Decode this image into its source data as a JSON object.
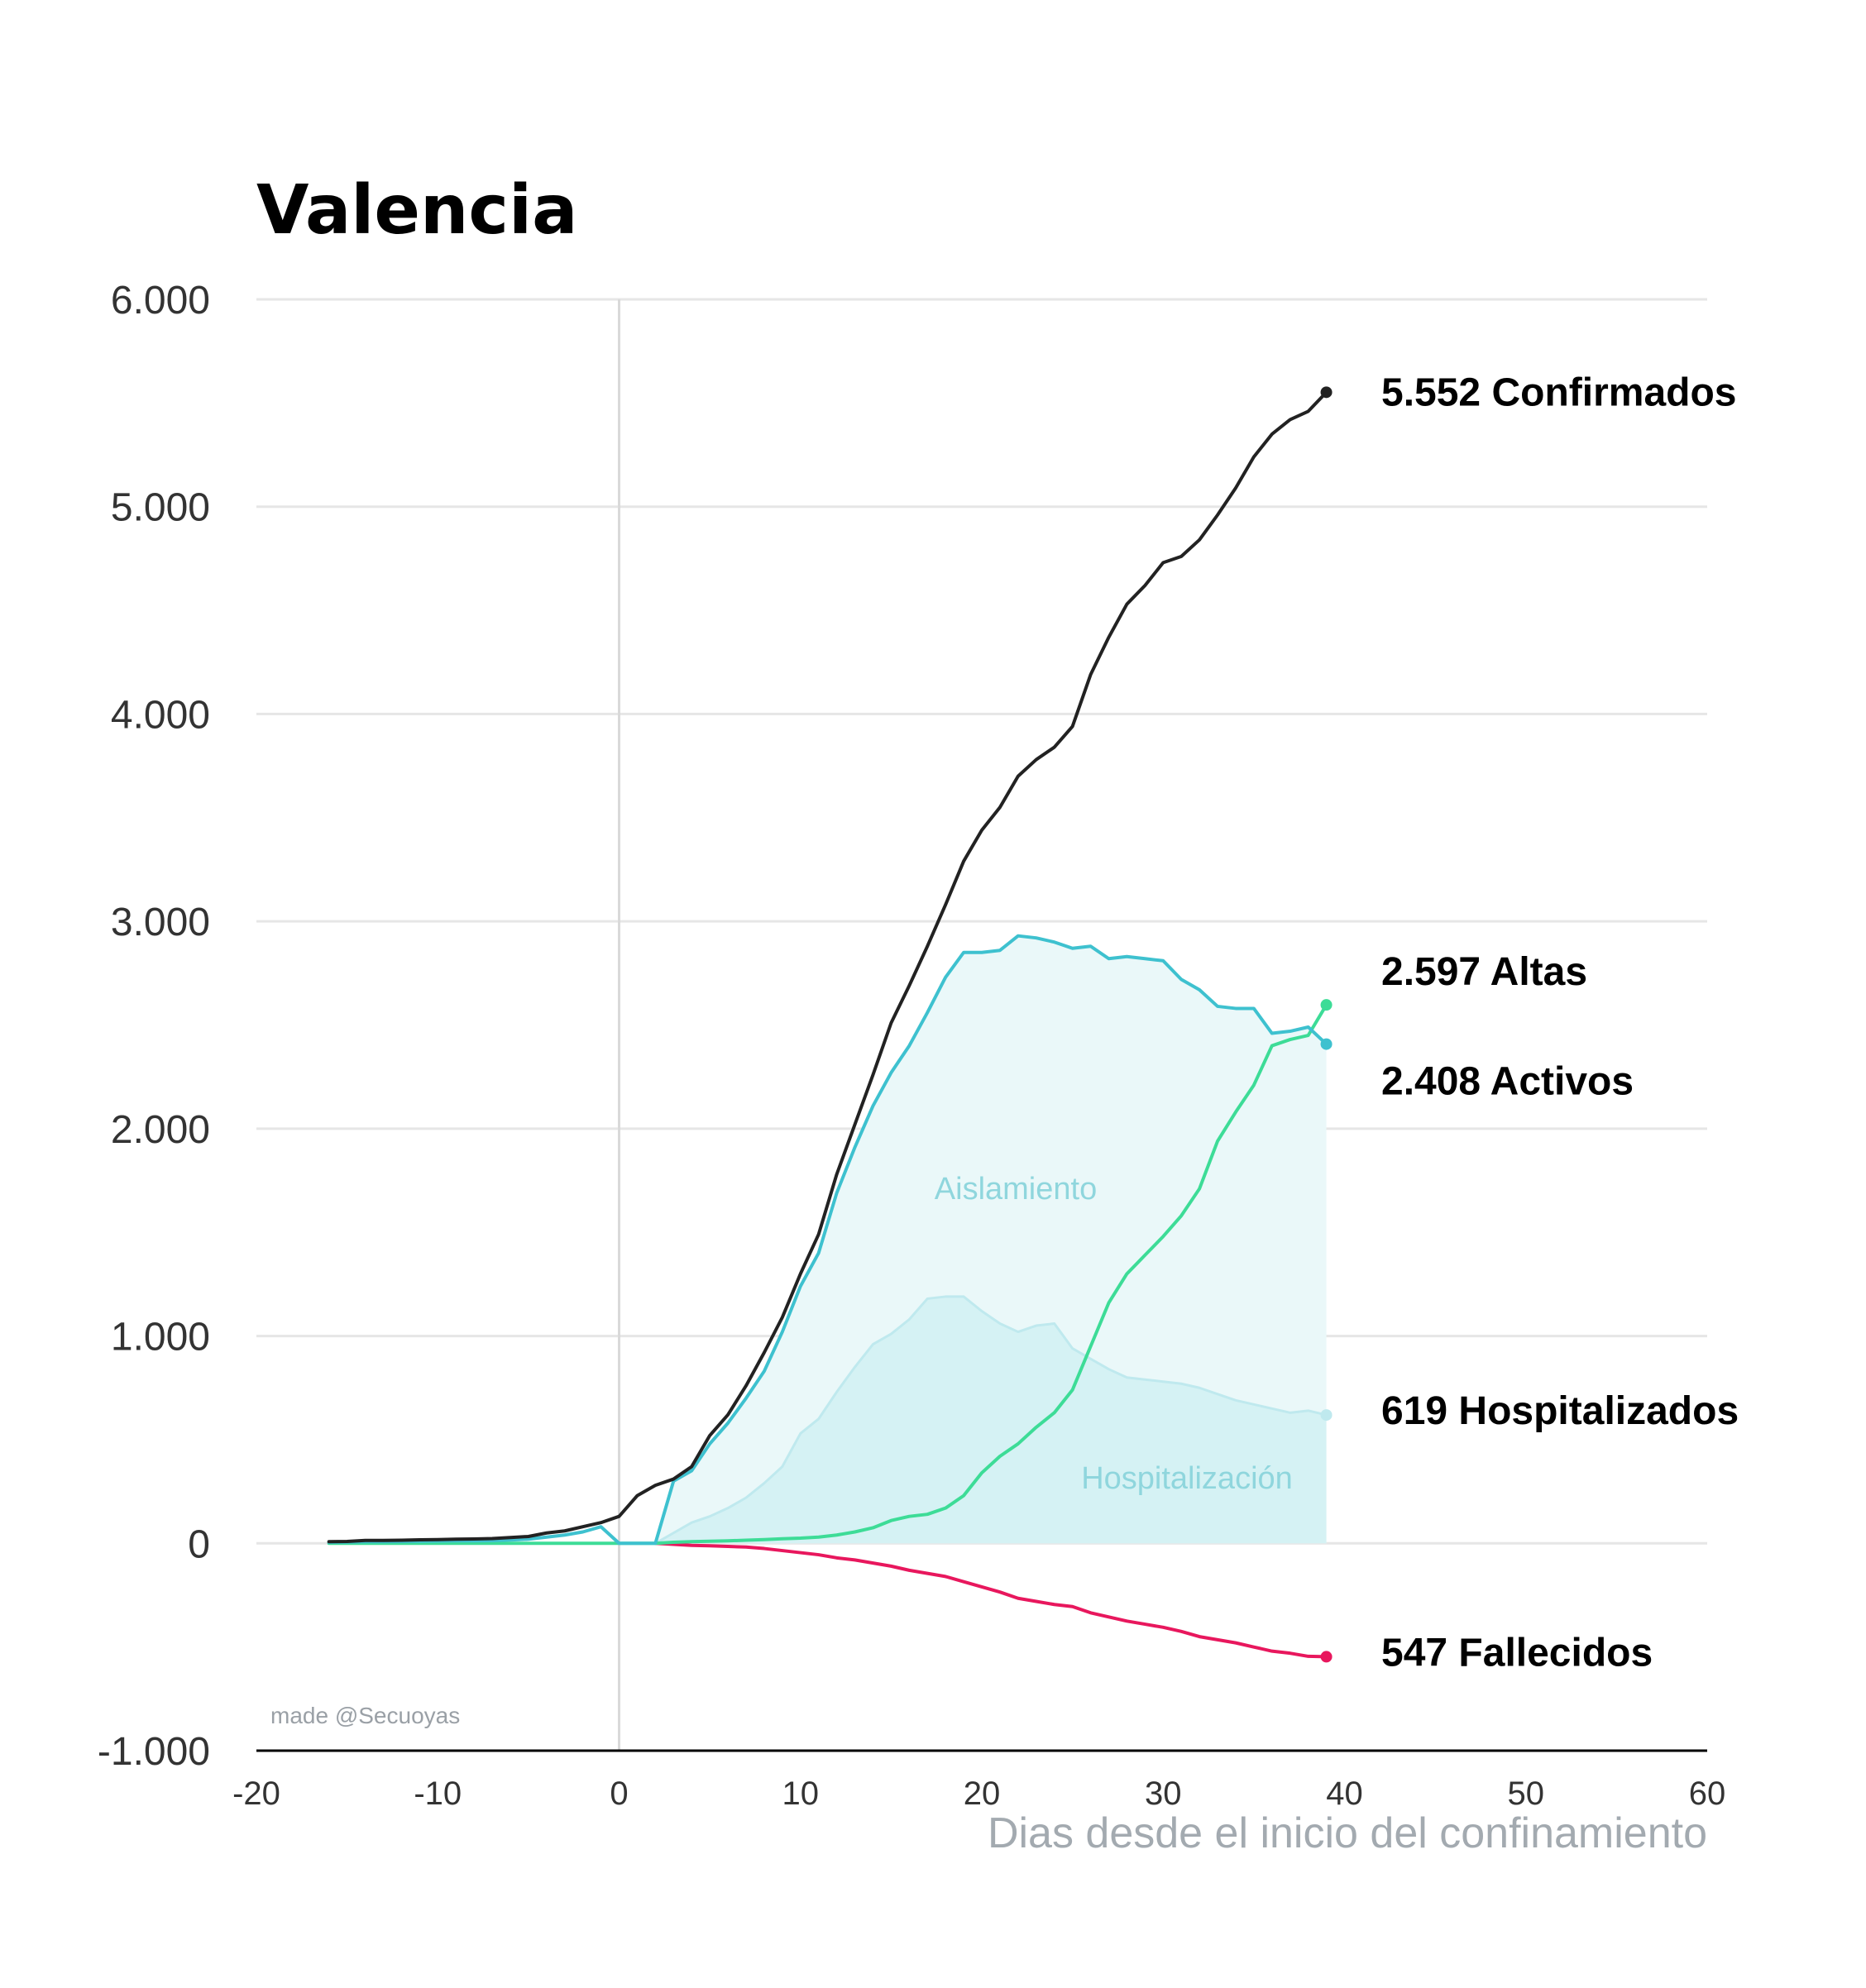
{
  "chart_data": {
    "type": "line",
    "title": "Valencia",
    "xlabel": "Dias desde el inicio del confinamiento",
    "ylabel": "",
    "xlim": [
      -20,
      60
    ],
    "ylim": [
      -1000,
      6000
    ],
    "x_ticks": [
      -20,
      -10,
      0,
      10,
      20,
      30,
      40,
      50,
      60
    ],
    "x_tick_labels": [
      "-20",
      "-10",
      "0",
      "10",
      "20",
      "30",
      "40",
      "50",
      "60"
    ],
    "y_ticks": [
      -1000,
      0,
      1000,
      2000,
      3000,
      4000,
      5000,
      6000
    ],
    "y_tick_labels": [
      "-1.000",
      "0",
      "1.000",
      "2.000",
      "3.000",
      "4.000",
      "5.000",
      "6.000"
    ],
    "grid": true,
    "colors": {
      "confirmados": "#222222",
      "activos": "#3ec1cf",
      "altas": "#3ddc97",
      "hospitalizados": "#bfe9ee",
      "fallecidos": "#e8175d",
      "aislamiento_fill": "#eaf8f9",
      "hospitalizacion_fill": "#d5f2f4"
    },
    "series": [
      {
        "key": "confirmados",
        "end_label": "5.552 Confirmados",
        "x": [
          -16,
          -15,
          -14,
          -13,
          -12,
          -11,
          -10,
          -9,
          -8,
          -7,
          -6,
          -5,
          -4,
          -3,
          -2,
          -1,
          0,
          1,
          2,
          3,
          4,
          5,
          6,
          7,
          8,
          9,
          10,
          11,
          12,
          13,
          14,
          15,
          16,
          17,
          18,
          19,
          20,
          21,
          22,
          23,
          24,
          25,
          26,
          27,
          28,
          29,
          30,
          31,
          32,
          33,
          34,
          35,
          36,
          37,
          38,
          39
        ],
        "y": [
          8,
          9,
          14,
          14,
          15,
          17,
          18,
          20,
          21,
          23,
          28,
          33,
          50,
          60,
          80,
          100,
          130,
          230,
          280,
          310,
          370,
          520,
          620,
          760,
          920,
          1090,
          1300,
          1490,
          1780,
          2020,
          2260,
          2510,
          2690,
          2880,
          3080,
          3290,
          3440,
          3550,
          3700,
          3780,
          3840,
          3940,
          4190,
          4370,
          4530,
          4620,
          4730,
          4760,
          4840,
          4960,
          5090,
          5240,
          5350,
          5420,
          5460,
          5552
        ]
      },
      {
        "key": "activos",
        "end_label": "2.408 Activos",
        "x": [
          -16,
          -15,
          -14,
          -13,
          -12,
          -11,
          -10,
          -9,
          -8,
          -7,
          -6,
          -5,
          -4,
          -3,
          -2,
          -1,
          0,
          1,
          2,
          3,
          4,
          5,
          6,
          7,
          8,
          9,
          10,
          11,
          12,
          13,
          14,
          15,
          16,
          17,
          18,
          19,
          20,
          21,
          22,
          23,
          24,
          25,
          26,
          27,
          28,
          29,
          30,
          31,
          32,
          33,
          34,
          35,
          36,
          37,
          38,
          39
        ],
        "y": [
          5,
          6,
          8,
          8,
          9,
          10,
          11,
          12,
          12,
          13,
          16,
          20,
          30,
          40,
          55,
          80,
          0,
          0,
          0,
          300,
          350,
          480,
          580,
          700,
          830,
          1020,
          1240,
          1400,
          1690,
          1910,
          2110,
          2270,
          2400,
          2560,
          2730,
          2850,
          2850,
          2860,
          2930,
          2920,
          2900,
          2870,
          2880,
          2820,
          2830,
          2820,
          2810,
          2720,
          2670,
          2590,
          2580,
          2580,
          2460,
          2470,
          2490,
          2408
        ]
      },
      {
        "key": "altas",
        "end_label": "2.597 Altas",
        "x": [
          -16,
          -15,
          -14,
          -13,
          -12,
          -11,
          -10,
          -9,
          -8,
          -7,
          -6,
          -5,
          -4,
          -3,
          -2,
          -1,
          0,
          1,
          2,
          3,
          4,
          5,
          6,
          7,
          8,
          9,
          10,
          11,
          12,
          13,
          14,
          15,
          16,
          17,
          18,
          19,
          20,
          21,
          22,
          23,
          24,
          25,
          26,
          27,
          28,
          29,
          30,
          31,
          32,
          33,
          34,
          35,
          36,
          37,
          38,
          39
        ],
        "y": [
          0,
          0,
          0,
          0,
          0,
          0,
          0,
          0,
          0,
          0,
          0,
          0,
          0,
          0,
          0,
          0,
          0,
          0,
          0,
          5,
          8,
          10,
          12,
          15,
          18,
          22,
          25,
          30,
          40,
          55,
          75,
          110,
          130,
          140,
          170,
          230,
          340,
          420,
          480,
          560,
          630,
          740,
          950,
          1160,
          1300,
          1390,
          1480,
          1580,
          1710,
          1940,
          2080,
          2210,
          2400,
          2430,
          2450,
          2597
        ]
      },
      {
        "key": "hospitalizados",
        "end_label": "619 Hospitalizados",
        "x": [
          2,
          3,
          4,
          5,
          6,
          7,
          8,
          9,
          10,
          11,
          12,
          13,
          14,
          15,
          16,
          17,
          18,
          19,
          20,
          21,
          22,
          23,
          24,
          25,
          26,
          27,
          28,
          29,
          30,
          31,
          32,
          33,
          34,
          35,
          36,
          37,
          38,
          39
        ],
        "y": [
          0,
          50,
          100,
          130,
          170,
          220,
          290,
          370,
          530,
          600,
          730,
          850,
          960,
          1010,
          1080,
          1180,
          1190,
          1190,
          1120,
          1060,
          1020,
          1050,
          1060,
          940,
          890,
          840,
          800,
          790,
          780,
          770,
          750,
          720,
          690,
          670,
          650,
          630,
          640,
          619
        ]
      },
      {
        "key": "fallecidos",
        "end_label": "547 Fallecidos",
        "x": [
          2,
          3,
          4,
          5,
          6,
          7,
          8,
          9,
          10,
          11,
          12,
          13,
          14,
          15,
          16,
          17,
          18,
          19,
          20,
          21,
          22,
          23,
          24,
          25,
          26,
          27,
          28,
          29,
          30,
          31,
          32,
          33,
          34,
          35,
          36,
          37,
          38,
          39
        ],
        "y": [
          0,
          -5,
          -10,
          -12,
          -15,
          -18,
          -25,
          -35,
          -45,
          -55,
          -70,
          -80,
          -95,
          -110,
          -130,
          -145,
          -160,
          -185,
          -210,
          -235,
          -265,
          -280,
          -295,
          -305,
          -335,
          -355,
          -375,
          -390,
          -405,
          -425,
          -450,
          -465,
          -480,
          -500,
          -520,
          -530,
          -545,
          -547
        ]
      }
    ],
    "annotations": {
      "aislamiento": "Aislamiento",
      "hospitalizacion": "Hospitalización",
      "credit": "made @Secuoyas"
    }
  }
}
